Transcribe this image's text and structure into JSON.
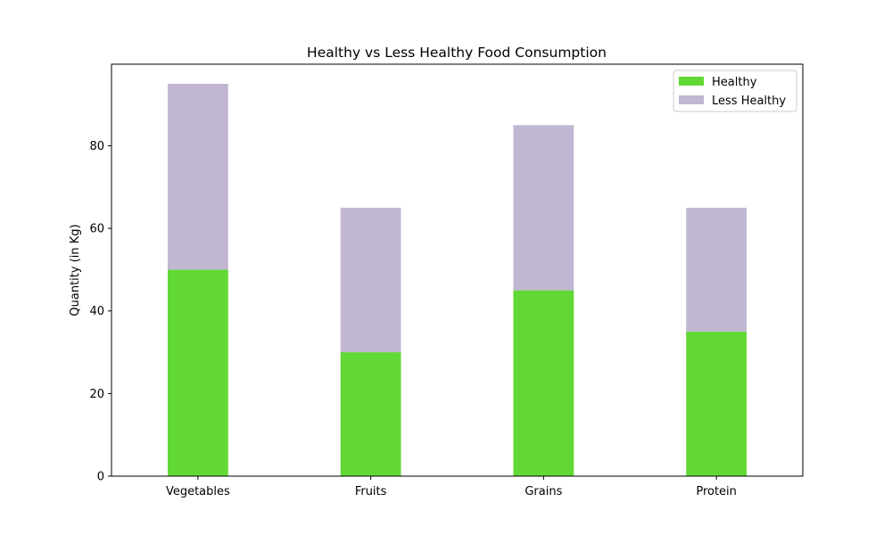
{
  "chart_data": {
    "type": "bar",
    "stacked": true,
    "title": "Healthy vs Less Healthy Food Consumption",
    "xlabel": "",
    "ylabel": "Quantity (in Kg)",
    "categories": [
      "Vegetables",
      "Fruits",
      "Grains",
      "Protein"
    ],
    "series": [
      {
        "name": "Healthy",
        "values": [
          50,
          30,
          45,
          35
        ],
        "color": "#62d836"
      },
      {
        "name": "Less Healthy",
        "values": [
          45,
          35,
          40,
          30
        ],
        "color": "#c1b7d3"
      }
    ],
    "ylim": [
      0,
      99.75
    ],
    "yticks": [
      0,
      20,
      40,
      60,
      80
    ],
    "grid": false,
    "legend_position": "top-right"
  }
}
